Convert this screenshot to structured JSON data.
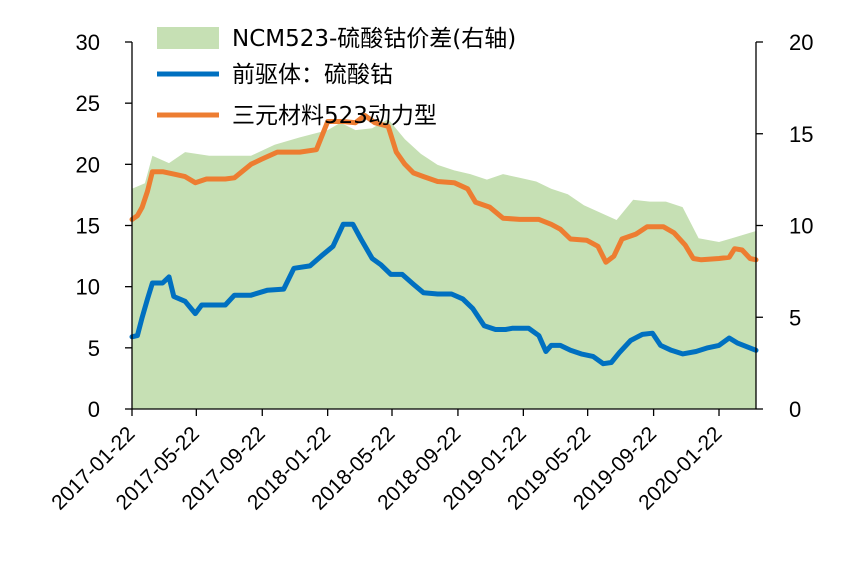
{
  "chart_data": {
    "type": "line",
    "x_tick_labels": [
      "2017-01-22",
      "2017-05-22",
      "2017-09-22",
      "2018-01-22",
      "2018-05-22",
      "2018-09-22",
      "2019-01-22",
      "2019-05-22",
      "2019-09-22",
      "2020-01-22"
    ],
    "x_range": [
      "2017-01-22",
      "2020-03-31"
    ],
    "y_left": {
      "ylim": [
        0,
        30
      ],
      "ticks": [
        "0",
        "5",
        "10",
        "15",
        "20",
        "25",
        "30"
      ]
    },
    "y_right": {
      "ylim": [
        0,
        20
      ],
      "ticks": [
        "0",
        "5",
        "10",
        "15",
        "20"
      ]
    },
    "legend": {
      "placement": "top-left",
      "entries": [
        "NCM523-硫酸钴价差(右轴)",
        "前驱体：硫酸钴",
        "三元材料523动力型"
      ]
    },
    "grid": false,
    "colors": {
      "spread": "#c6e0b4",
      "precursor": "#0070c0",
      "material": "#ed7d31"
    },
    "series": [
      {
        "name": "NCM523-硫酸钴价差(右轴)",
        "kind": "area",
        "axis": "right",
        "points": [
          [
            "2017-01-22",
            12.0
          ],
          [
            "2017-02-15",
            12.3
          ],
          [
            "2017-03-01",
            13.8
          ],
          [
            "2017-04-01",
            13.4
          ],
          [
            "2017-05-01",
            14.0
          ],
          [
            "2017-06-15",
            13.8
          ],
          [
            "2017-08-01",
            13.8
          ],
          [
            "2017-09-01",
            13.8
          ],
          [
            "2017-10-15",
            14.4
          ],
          [
            "2017-12-01",
            14.8
          ],
          [
            "2018-01-22",
            15.2
          ],
          [
            "2018-02-15",
            15.6
          ],
          [
            "2018-03-15",
            15.2
          ],
          [
            "2018-04-15",
            15.3
          ],
          [
            "2018-05-15",
            15.8
          ],
          [
            "2018-06-15",
            14.7
          ],
          [
            "2018-07-15",
            13.9
          ],
          [
            "2018-08-15",
            13.3
          ],
          [
            "2018-09-15",
            13.0
          ],
          [
            "2018-10-15",
            12.8
          ],
          [
            "2018-11-15",
            12.5
          ],
          [
            "2018-12-15",
            12.8
          ],
          [
            "2019-01-15",
            12.6
          ],
          [
            "2019-02-15",
            12.4
          ],
          [
            "2019-03-15",
            12.0
          ],
          [
            "2019-04-15",
            11.7
          ],
          [
            "2019-05-15",
            11.1
          ],
          [
            "2019-06-15",
            10.7
          ],
          [
            "2019-07-15",
            10.3
          ],
          [
            "2019-08-15",
            11.4
          ],
          [
            "2019-09-15",
            11.3
          ],
          [
            "2019-10-15",
            11.3
          ],
          [
            "2019-11-15",
            11.0
          ],
          [
            "2019-12-15",
            9.3
          ],
          [
            "2020-01-22",
            9.1
          ],
          [
            "2020-02-15",
            9.3
          ],
          [
            "2020-03-31",
            9.7
          ]
        ]
      },
      {
        "name": "前驱体：硫酸钴",
        "kind": "line",
        "axis": "left",
        "points": [
          [
            "2017-01-22",
            5.9
          ],
          [
            "2017-02-01",
            6.0
          ],
          [
            "2017-02-10",
            7.5
          ],
          [
            "2017-02-20",
            9.0
          ],
          [
            "2017-03-01",
            10.3
          ],
          [
            "2017-03-20",
            10.3
          ],
          [
            "2017-04-01",
            10.8
          ],
          [
            "2017-04-10",
            9.2
          ],
          [
            "2017-05-01",
            8.8
          ],
          [
            "2017-05-20",
            7.8
          ],
          [
            "2017-06-01",
            8.5
          ],
          [
            "2017-07-15",
            8.5
          ],
          [
            "2017-08-01",
            9.3
          ],
          [
            "2017-09-01",
            9.3
          ],
          [
            "2017-10-01",
            9.7
          ],
          [
            "2017-11-01",
            9.8
          ],
          [
            "2017-11-20",
            11.5
          ],
          [
            "2017-12-20",
            11.7
          ],
          [
            "2018-01-10",
            12.5
          ],
          [
            "2018-02-01",
            13.3
          ],
          [
            "2018-02-20",
            15.1
          ],
          [
            "2018-03-10",
            15.1
          ],
          [
            "2018-03-25",
            13.9
          ],
          [
            "2018-04-15",
            12.3
          ],
          [
            "2018-05-01",
            11.8
          ],
          [
            "2018-05-20",
            11.0
          ],
          [
            "2018-06-10",
            11.0
          ],
          [
            "2018-07-01",
            10.2
          ],
          [
            "2018-07-20",
            9.5
          ],
          [
            "2018-08-15",
            9.4
          ],
          [
            "2018-09-10",
            9.4
          ],
          [
            "2018-10-01",
            9.0
          ],
          [
            "2018-10-20",
            8.2
          ],
          [
            "2018-11-10",
            6.8
          ],
          [
            "2018-12-01",
            6.5
          ],
          [
            "2018-12-20",
            6.5
          ],
          [
            "2019-01-01",
            6.6
          ],
          [
            "2019-02-01",
            6.6
          ],
          [
            "2019-02-20",
            6.0
          ],
          [
            "2019-03-05",
            4.7
          ],
          [
            "2019-03-15",
            5.2
          ],
          [
            "2019-04-01",
            5.2
          ],
          [
            "2019-04-20",
            4.8
          ],
          [
            "2019-05-10",
            4.5
          ],
          [
            "2019-06-01",
            4.3
          ],
          [
            "2019-06-20",
            3.7
          ],
          [
            "2019-07-05",
            3.8
          ],
          [
            "2019-07-20",
            4.6
          ],
          [
            "2019-08-10",
            5.6
          ],
          [
            "2019-09-01",
            6.1
          ],
          [
            "2019-09-20",
            6.2
          ],
          [
            "2019-10-05",
            5.2
          ],
          [
            "2019-10-25",
            4.8
          ],
          [
            "2019-11-15",
            4.5
          ],
          [
            "2019-12-10",
            4.7
          ],
          [
            "2020-01-01",
            5.0
          ],
          [
            "2020-01-22",
            5.2
          ],
          [
            "2020-02-10",
            5.8
          ],
          [
            "2020-02-25",
            5.4
          ],
          [
            "2020-03-31",
            4.8
          ]
        ]
      },
      {
        "name": "三元材料523动力型",
        "kind": "line",
        "axis": "left",
        "points": [
          [
            "2017-01-22",
            15.5
          ],
          [
            "2017-02-01",
            15.8
          ],
          [
            "2017-02-10",
            16.5
          ],
          [
            "2017-02-20",
            17.8
          ],
          [
            "2017-03-01",
            19.4
          ],
          [
            "2017-03-20",
            19.4
          ],
          [
            "2017-04-10",
            19.2
          ],
          [
            "2017-05-01",
            19.0
          ],
          [
            "2017-05-20",
            18.5
          ],
          [
            "2017-06-10",
            18.8
          ],
          [
            "2017-07-15",
            18.8
          ],
          [
            "2017-08-01",
            18.9
          ],
          [
            "2017-09-01",
            20.0
          ],
          [
            "2017-09-20",
            20.4
          ],
          [
            "2017-10-20",
            21.0
          ],
          [
            "2017-12-01",
            21.0
          ],
          [
            "2018-01-01",
            21.2
          ],
          [
            "2018-01-22",
            23.5
          ],
          [
            "2018-02-20",
            23.5
          ],
          [
            "2018-03-15",
            23.4
          ],
          [
            "2018-04-01",
            24.0
          ],
          [
            "2018-04-20",
            23.4
          ],
          [
            "2018-05-15",
            23.1
          ],
          [
            "2018-05-30",
            21.0
          ],
          [
            "2018-06-15",
            20.0
          ],
          [
            "2018-07-01",
            19.3
          ],
          [
            "2018-07-20",
            19.0
          ],
          [
            "2018-08-15",
            18.6
          ],
          [
            "2018-09-15",
            18.5
          ],
          [
            "2018-10-10",
            18.0
          ],
          [
            "2018-10-25",
            16.9
          ],
          [
            "2018-11-20",
            16.5
          ],
          [
            "2018-12-15",
            15.6
          ],
          [
            "2019-01-15",
            15.5
          ],
          [
            "2019-02-20",
            15.5
          ],
          [
            "2019-03-15",
            15.1
          ],
          [
            "2019-04-01",
            14.7
          ],
          [
            "2019-04-20",
            13.9
          ],
          [
            "2019-05-20",
            13.8
          ],
          [
            "2019-06-10",
            13.3
          ],
          [
            "2019-06-25",
            12.0
          ],
          [
            "2019-07-10",
            12.5
          ],
          [
            "2019-07-25",
            13.9
          ],
          [
            "2019-08-20",
            14.3
          ],
          [
            "2019-09-10",
            14.9
          ],
          [
            "2019-10-10",
            14.9
          ],
          [
            "2019-10-30",
            14.4
          ],
          [
            "2019-11-20",
            13.4
          ],
          [
            "2019-12-05",
            12.3
          ],
          [
            "2019-12-20",
            12.2
          ],
          [
            "2020-01-22",
            12.3
          ],
          [
            "2020-02-10",
            12.4
          ],
          [
            "2020-02-20",
            13.1
          ],
          [
            "2020-03-05",
            13.0
          ],
          [
            "2020-03-20",
            12.3
          ],
          [
            "2020-03-31",
            12.2
          ]
        ]
      }
    ]
  }
}
